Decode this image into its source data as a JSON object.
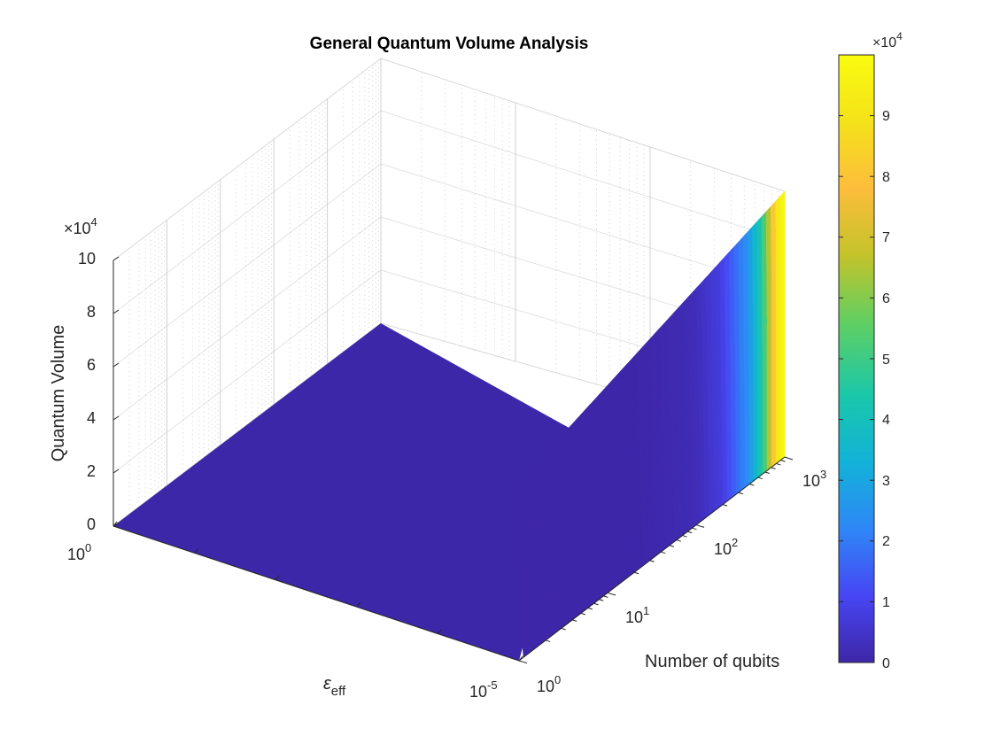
{
  "chart_data": {
    "type": "surface",
    "title": "General Quantum Volume Analysis",
    "xlabel": "ε",
    "xlabel_subscript": "eff",
    "ylabel": "Number of qubits",
    "zlabel": "Quantum Volume",
    "x_ticks": [
      {
        "base": "10",
        "exp": "0"
      },
      {
        "base": "10",
        "exp": "-5"
      }
    ],
    "y_ticks": [
      {
        "base": "10",
        "exp": "0"
      },
      {
        "base": "10",
        "exp": "1"
      },
      {
        "base": "10",
        "exp": "2"
      },
      {
        "base": "10",
        "exp": "3"
      }
    ],
    "z_ticks": [
      "0",
      "2",
      "4",
      "6",
      "8",
      "10"
    ],
    "z_multiplier": {
      "prefix": "×10",
      "exp": "4"
    },
    "zlim": [
      0,
      100000
    ],
    "colorbar": {
      "ticks": [
        "0",
        "1",
        "2",
        "3",
        "4",
        "5",
        "6",
        "7",
        "8",
        "9"
      ],
      "multiplier": {
        "prefix": "×10",
        "exp": "4"
      },
      "range": [
        0,
        100000
      ],
      "colormap": "parula",
      "stops": [
        "#3e26a8",
        "#4746f3",
        "#2e87f7",
        "#12b2d8",
        "#1ac7a9",
        "#60cf62",
        "#c3c32a",
        "#fdbd3c",
        "#f4e21a",
        "#f9fb0e"
      ]
    },
    "surface": {
      "qubit_samples": [
        1,
        10,
        30,
        100,
        200,
        400,
        600,
        800,
        1000
      ],
      "quantum_volume_at_min_error": [
        0,
        10,
        200,
        2000,
        8000,
        25000,
        50000,
        90000,
        100000
      ],
      "quantum_volume_at_max_error": [
        0,
        0,
        0,
        0,
        0,
        0,
        0,
        0,
        0
      ]
    }
  }
}
